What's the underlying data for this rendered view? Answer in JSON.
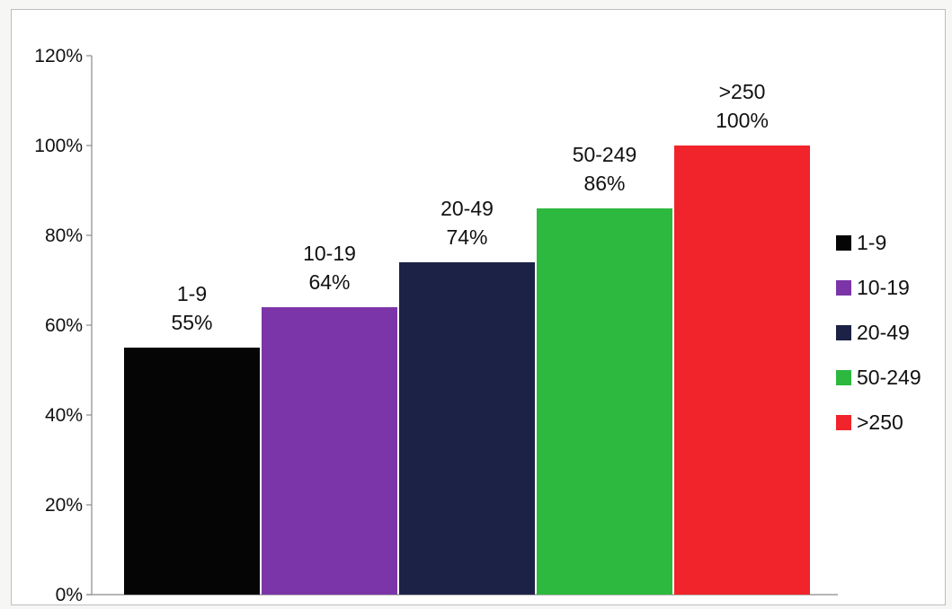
{
  "chart_data": {
    "type": "bar",
    "title": "",
    "xlabel": "",
    "ylabel": "",
    "categories": [
      "1-9",
      "10-19",
      "20-49",
      "50-249",
      ">250"
    ],
    "values": [
      55,
      64,
      74,
      86,
      100
    ],
    "value_labels": [
      "55%",
      "64%",
      "74%",
      "86%",
      "100%"
    ],
    "colors": [
      "#050505",
      "#7b35a8",
      "#1c2246",
      "#2db83f",
      "#f0242a"
    ],
    "ylim": [
      0,
      120
    ],
    "y_ticks": [
      0,
      20,
      40,
      60,
      80,
      100,
      120
    ],
    "y_tick_labels": [
      "0%",
      "20%",
      "40%",
      "60%",
      "80%",
      "100%",
      "120%"
    ],
    "grid": false,
    "legend": {
      "position": "right",
      "entries": [
        "1-9",
        "10-19",
        "20-49",
        "50-249",
        ">250"
      ]
    }
  }
}
